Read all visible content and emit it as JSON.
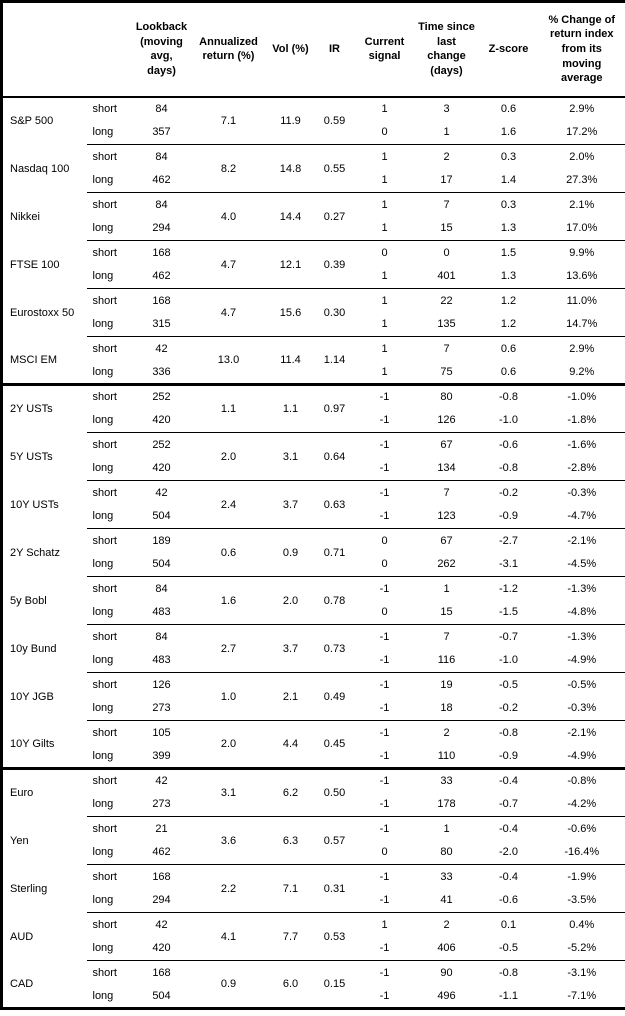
{
  "table": {
    "headers": {
      "asset": "",
      "leg": "",
      "lookback": "Lookback (moving avg, days)",
      "annualized_return": "Annualized return (%)",
      "vol": "Vol (%)",
      "ir": "IR",
      "current_signal": "Current signal",
      "time_since_change": "Time since last change (days)",
      "z_score": "Z-score",
      "pct_change": "% Change of return index from its moving average"
    },
    "leg_labels": {
      "short": "short",
      "long": "long"
    },
    "sections": [
      {
        "assets": [
          {
            "name": "S&P 500",
            "annualized_return": "7.1",
            "vol": "11.9",
            "ir": "0.59",
            "short": {
              "lookback": "84",
              "signal": "1",
              "days": "3",
              "z_score": "0.6",
              "pct_change": "2.9%"
            },
            "long": {
              "lookback": "357",
              "signal": "0",
              "days": "1",
              "z_score": "1.6",
              "pct_change": "17.2%"
            }
          },
          {
            "name": "Nasdaq 100",
            "annualized_return": "8.2",
            "vol": "14.8",
            "ir": "0.55",
            "short": {
              "lookback": "84",
              "signal": "1",
              "days": "2",
              "z_score": "0.3",
              "pct_change": "2.0%"
            },
            "long": {
              "lookback": "462",
              "signal": "1",
              "days": "17",
              "z_score": "1.4",
              "pct_change": "27.3%"
            }
          },
          {
            "name": "Nikkei",
            "annualized_return": "4.0",
            "vol": "14.4",
            "ir": "0.27",
            "short": {
              "lookback": "84",
              "signal": "1",
              "days": "7",
              "z_score": "0.3",
              "pct_change": "2.1%"
            },
            "long": {
              "lookback": "294",
              "signal": "1",
              "days": "15",
              "z_score": "1.3",
              "pct_change": "17.0%"
            }
          },
          {
            "name": "FTSE 100",
            "annualized_return": "4.7",
            "vol": "12.1",
            "ir": "0.39",
            "short": {
              "lookback": "168",
              "signal": "0",
              "days": "0",
              "z_score": "1.5",
              "pct_change": "9.9%"
            },
            "long": {
              "lookback": "462",
              "signal": "1",
              "days": "401",
              "z_score": "1.3",
              "pct_change": "13.6%"
            }
          },
          {
            "name": "Eurostoxx 50",
            "annualized_return": "4.7",
            "vol": "15.6",
            "ir": "0.30",
            "short": {
              "lookback": "168",
              "signal": "1",
              "days": "22",
              "z_score": "1.2",
              "pct_change": "11.0%"
            },
            "long": {
              "lookback": "315",
              "signal": "1",
              "days": "135",
              "z_score": "1.2",
              "pct_change": "14.7%"
            }
          },
          {
            "name": "MSCI EM",
            "annualized_return": "13.0",
            "vol": "11.4",
            "ir": "1.14",
            "short": {
              "lookback": "42",
              "signal": "1",
              "days": "7",
              "z_score": "0.6",
              "pct_change": "2.9%"
            },
            "long": {
              "lookback": "336",
              "signal": "1",
              "days": "75",
              "z_score": "0.6",
              "pct_change": "9.2%"
            }
          }
        ]
      },
      {
        "assets": [
          {
            "name": "2Y USTs",
            "annualized_return": "1.1",
            "vol": "1.1",
            "ir": "0.97",
            "short": {
              "lookback": "252",
              "signal": "-1",
              "days": "80",
              "z_score": "-0.8",
              "pct_change": "-1.0%"
            },
            "long": {
              "lookback": "420",
              "signal": "-1",
              "days": "126",
              "z_score": "-1.0",
              "pct_change": "-1.8%"
            }
          },
          {
            "name": "5Y USTs",
            "annualized_return": "2.0",
            "vol": "3.1",
            "ir": "0.64",
            "short": {
              "lookback": "252",
              "signal": "-1",
              "days": "67",
              "z_score": "-0.6",
              "pct_change": "-1.6%"
            },
            "long": {
              "lookback": "420",
              "signal": "-1",
              "days": "134",
              "z_score": "-0.8",
              "pct_change": "-2.8%"
            }
          },
          {
            "name": "10Y USTs",
            "annualized_return": "2.4",
            "vol": "3.7",
            "ir": "0.63",
            "short": {
              "lookback": "42",
              "signal": "-1",
              "days": "7",
              "z_score": "-0.2",
              "pct_change": "-0.3%"
            },
            "long": {
              "lookback": "504",
              "signal": "-1",
              "days": "123",
              "z_score": "-0.9",
              "pct_change": "-4.7%"
            }
          },
          {
            "name": "2Y Schatz",
            "annualized_return": "0.6",
            "vol": "0.9",
            "ir": "0.71",
            "short": {
              "lookback": "189",
              "signal": "0",
              "days": "67",
              "z_score": "-2.7",
              "pct_change": "-2.1%"
            },
            "long": {
              "lookback": "504",
              "signal": "0",
              "days": "262",
              "z_score": "-3.1",
              "pct_change": "-4.5%"
            }
          },
          {
            "name": "5y Bobl",
            "annualized_return": "1.6",
            "vol": "2.0",
            "ir": "0.78",
            "short": {
              "lookback": "84",
              "signal": "-1",
              "days": "1",
              "z_score": "-1.2",
              "pct_change": "-1.3%"
            },
            "long": {
              "lookback": "483",
              "signal": "0",
              "days": "15",
              "z_score": "-1.5",
              "pct_change": "-4.8%"
            }
          },
          {
            "name": "10y Bund",
            "annualized_return": "2.7",
            "vol": "3.7",
            "ir": "0.73",
            "short": {
              "lookback": "84",
              "signal": "-1",
              "days": "7",
              "z_score": "-0.7",
              "pct_change": "-1.3%"
            },
            "long": {
              "lookback": "483",
              "signal": "-1",
              "days": "116",
              "z_score": "-1.0",
              "pct_change": "-4.9%"
            }
          },
          {
            "name": "10Y JGB",
            "annualized_return": "1.0",
            "vol": "2.1",
            "ir": "0.49",
            "short": {
              "lookback": "126",
              "signal": "-1",
              "days": "19",
              "z_score": "-0.5",
              "pct_change": "-0.5%"
            },
            "long": {
              "lookback": "273",
              "signal": "-1",
              "days": "18",
              "z_score": "-0.2",
              "pct_change": "-0.3%"
            }
          },
          {
            "name": "10Y Gilts",
            "annualized_return": "2.0",
            "vol": "4.4",
            "ir": "0.45",
            "short": {
              "lookback": "105",
              "signal": "-1",
              "days": "2",
              "z_score": "-0.8",
              "pct_change": "-2.1%"
            },
            "long": {
              "lookback": "399",
              "signal": "-1",
              "days": "110",
              "z_score": "-0.9",
              "pct_change": "-4.9%"
            }
          }
        ]
      },
      {
        "assets": [
          {
            "name": "Euro",
            "annualized_return": "3.1",
            "vol": "6.2",
            "ir": "0.50",
            "short": {
              "lookback": "42",
              "signal": "-1",
              "days": "33",
              "z_score": "-0.4",
              "pct_change": "-0.8%"
            },
            "long": {
              "lookback": "273",
              "signal": "-1",
              "days": "178",
              "z_score": "-0.7",
              "pct_change": "-4.2%"
            }
          },
          {
            "name": "Yen",
            "annualized_return": "3.6",
            "vol": "6.3",
            "ir": "0.57",
            "short": {
              "lookback": "21",
              "signal": "-1",
              "days": "1",
              "z_score": "-0.4",
              "pct_change": "-0.6%"
            },
            "long": {
              "lookback": "462",
              "signal": "0",
              "days": "80",
              "z_score": "-2.0",
              "pct_change": "-16.4%"
            }
          },
          {
            "name": "Sterling",
            "annualized_return": "2.2",
            "vol": "7.1",
            "ir": "0.31",
            "short": {
              "lookback": "168",
              "signal": "-1",
              "days": "33",
              "z_score": "-0.4",
              "pct_change": "-1.9%"
            },
            "long": {
              "lookback": "294",
              "signal": "-1",
              "days": "41",
              "z_score": "-0.6",
              "pct_change": "-3.5%"
            }
          },
          {
            "name": "AUD",
            "annualized_return": "4.1",
            "vol": "7.7",
            "ir": "0.53",
            "short": {
              "lookback": "42",
              "signal": "1",
              "days": "2",
              "z_score": "0.1",
              "pct_change": "0.4%"
            },
            "long": {
              "lookback": "420",
              "signal": "-1",
              "days": "406",
              "z_score": "-0.5",
              "pct_change": "-5.2%"
            }
          },
          {
            "name": "CAD",
            "annualized_return": "0.9",
            "vol": "6.0",
            "ir": "0.15",
            "short": {
              "lookback": "168",
              "signal": "-1",
              "days": "90",
              "z_score": "-0.8",
              "pct_change": "-3.1%"
            },
            "long": {
              "lookback": "504",
              "signal": "-1",
              "days": "496",
              "z_score": "-1.1",
              "pct_change": "-7.1%"
            }
          }
        ]
      }
    ]
  }
}
